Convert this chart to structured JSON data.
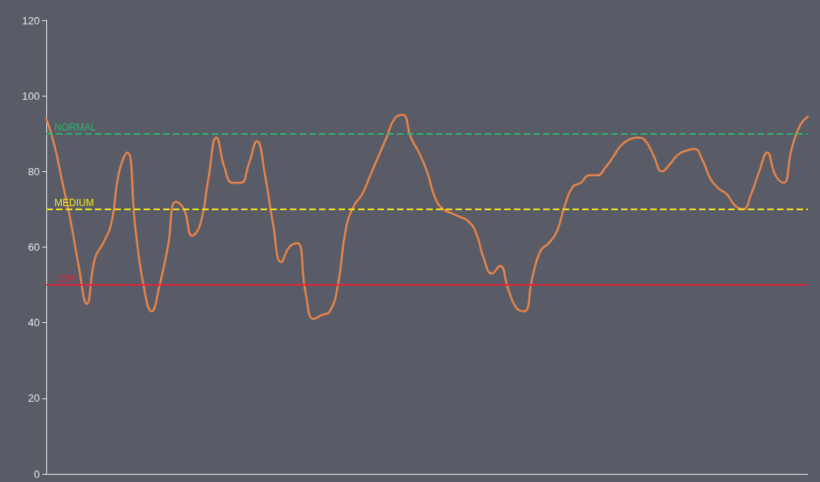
{
  "chart_data": {
    "type": "line",
    "categories": [
      null,
      null,
      null,
      null,
      null,
      null,
      null,
      null,
      null,
      null,
      null,
      null,
      null,
      null,
      null,
      null,
      null,
      null,
      null,
      null,
      null,
      null,
      null,
      null,
      null,
      null,
      null,
      null,
      null,
      null,
      null,
      null,
      null,
      null,
      null,
      null,
      null,
      null,
      null,
      null,
      null,
      null,
      null,
      null,
      null,
      null,
      null,
      null,
      null,
      null,
      null,
      null,
      null,
      null,
      null,
      null,
      null,
      null,
      null,
      null,
      null,
      null,
      null,
      null,
      null,
      null,
      null,
      null,
      null,
      null,
      null,
      null,
      null,
      null,
      null,
      null,
      null,
      null,
      null,
      null,
      null,
      null,
      null,
      null,
      null,
      null,
      null,
      null,
      null,
      null,
      null,
      null,
      null,
      null,
      null
    ],
    "series": [
      {
        "color": "#e8844a",
        "values": [
          94,
          87,
          77,
          67,
          55,
          45,
          57,
          61,
          66,
          80,
          85,
          65,
          50,
          43,
          50,
          60,
          72,
          70,
          63,
          66,
          78,
          89,
          81,
          77,
          77,
          82,
          88,
          79,
          66,
          56,
          60,
          61,
          48,
          41,
          42,
          43,
          50,
          65,
          71,
          74,
          79,
          84,
          89,
          94,
          95,
          89,
          85,
          80,
          73,
          70,
          69,
          68,
          67,
          64,
          57,
          53,
          55,
          49,
          44,
          43,
          52,
          59,
          61,
          64,
          71,
          76,
          77,
          79,
          79,
          81,
          84,
          87,
          88.5,
          89,
          88,
          84,
          80,
          82,
          84.5,
          85.5,
          86,
          83,
          78,
          75.5,
          74,
          71,
          70,
          74,
          80,
          85,
          79,
          77,
          86,
          92,
          94.5
        ]
      }
    ],
    "ylim": [
      0,
      120
    ],
    "yticks": [
      0,
      20,
      40,
      60,
      80,
      100,
      120
    ],
    "ref_lines": [
      {
        "axis": "y",
        "value": 90,
        "label": "NORMAL",
        "color": "#2fb36b",
        "line_style": "dashed"
      },
      {
        "axis": "y",
        "value": 70,
        "label": "MEDIUM",
        "color": "#f2e41c",
        "line_style": "dashed"
      },
      {
        "axis": "y",
        "value": 50,
        "label": "LOW",
        "color": "#e0243c",
        "line_style": "solid"
      }
    ],
    "grid": false,
    "marker": "none",
    "line_style": "solid"
  }
}
